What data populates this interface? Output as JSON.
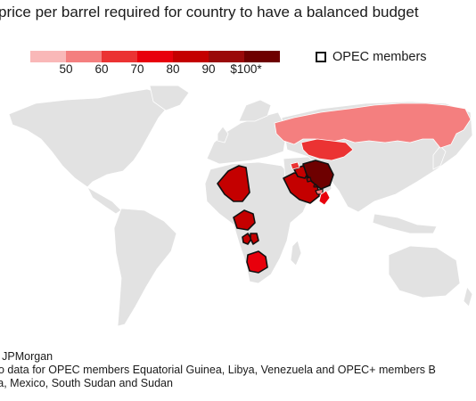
{
  "title": "price per barrel required for country to have a balanced budget",
  "legend": {
    "colors": [
      "#f9b8b8",
      "#f47f7f",
      "#eb3333",
      "#e8000c",
      "#c40000",
      "#9a0a0a",
      "#6e0000"
    ],
    "ticks": [
      "50",
      "60",
      "70",
      "80",
      "90",
      "$100*"
    ],
    "opec_label": "OPEC members"
  },
  "countries": [
    {
      "name": "Russia",
      "color": "#f47f7f",
      "opec": false
    },
    {
      "name": "Kazakhstan",
      "color": "#eb3333",
      "opec": false
    },
    {
      "name": "Algeria",
      "color": "#c40000",
      "opec": true
    },
    {
      "name": "Nigeria",
      "color": "#c40000",
      "opec": true
    },
    {
      "name": "Gabon",
      "color": "#c40000",
      "opec": true
    },
    {
      "name": "Congo",
      "color": "#c40000",
      "opec": true
    },
    {
      "name": "Angola",
      "color": "#e8000c",
      "opec": false
    },
    {
      "name": "Saudi Arabia",
      "color": "#c40000",
      "opec": true
    },
    {
      "name": "Iraq",
      "color": "#c40000",
      "opec": true
    },
    {
      "name": "Iran",
      "color": "#6e0000",
      "opec": true
    },
    {
      "name": "Kuwait",
      "color": "#9a0a0a",
      "opec": true
    },
    {
      "name": "UAE",
      "color": "#f47f7f",
      "opec": true
    },
    {
      "name": "Oman",
      "color": "#e8000c",
      "opec": false
    },
    {
      "name": "Azerbaijan",
      "color": "#eb3333",
      "opec": false
    },
    {
      "name": "Bahrain",
      "color": "#6e0000",
      "opec": false
    }
  ],
  "source": "ce: JPMorgan",
  "note_line1": ": No data for OPEC members Equatorial Guinea, Libya, Venezuela and OPEC+ members B",
  "note_line2": "ysia, Mexico, South Sudan and Sudan"
}
